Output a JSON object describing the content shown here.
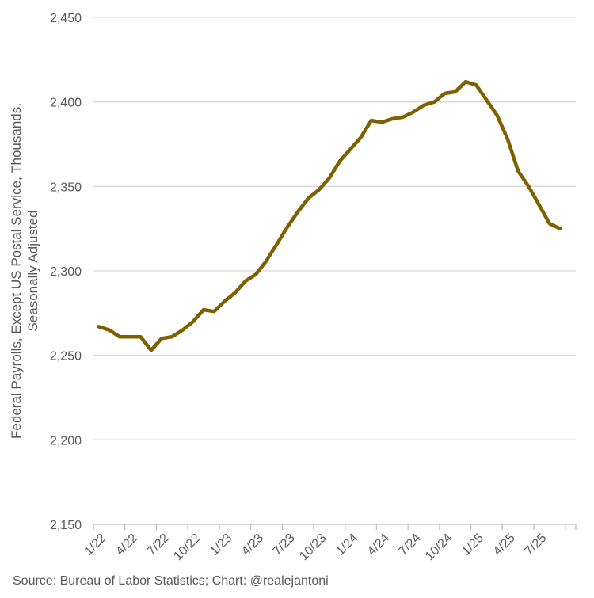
{
  "chart_data": {
    "type": "line",
    "title": "",
    "xlabel": "",
    "ylabel": [
      "Federal Payrolls, Except US Postal Service, Thousands,",
      "Seasonally Adjusted"
    ],
    "ylim": [
      2150,
      2450
    ],
    "yticks": [
      2150,
      2200,
      2250,
      2300,
      2350,
      2400,
      2450
    ],
    "ytick_labels": [
      "2,150",
      "2,200",
      "2,250",
      "2,300",
      "2,350",
      "2,400",
      "2,450"
    ],
    "x_tick_labels": [
      {
        "label": "1/22",
        "index": 0
      },
      {
        "label": "4/22",
        "index": 3
      },
      {
        "label": "7/22",
        "index": 6
      },
      {
        "label": "10/22",
        "index": 9
      },
      {
        "label": "1/23",
        "index": 12
      },
      {
        "label": "4/23",
        "index": 15
      },
      {
        "label": "7/23",
        "index": 18
      },
      {
        "label": "10/23",
        "index": 21
      },
      {
        "label": "1/24",
        "index": 24
      },
      {
        "label": "4/24",
        "index": 27
      },
      {
        "label": "7/24",
        "index": 30
      },
      {
        "label": "10/24",
        "index": 33
      },
      {
        "label": "1/25",
        "index": 36
      },
      {
        "label": "4/25",
        "index": 39
      },
      {
        "label": "7/25",
        "index": 42
      }
    ],
    "num_periods": 46,
    "series": [
      {
        "name": "Federal Payrolls, Except US Postal Service",
        "color": "#7f6000",
        "values": [
          2267,
          2265,
          2261,
          2261,
          2261,
          2253,
          2260,
          2261,
          2265,
          2270,
          2277,
          2276,
          2282,
          2287,
          2294,
          2298,
          2306,
          2316,
          2326,
          2335,
          2343,
          2348,
          2355,
          2365,
          2372,
          2379,
          2389,
          2388,
          2390,
          2391,
          2394,
          2398,
          2400,
          2405,
          2406,
          2412,
          2410,
          2401,
          2392,
          2378,
          2359,
          2350,
          2339,
          2328,
          2325
        ]
      }
    ]
  },
  "source_text": "Source: Bureau of Labor Statistics; Chart: @realejantoni"
}
